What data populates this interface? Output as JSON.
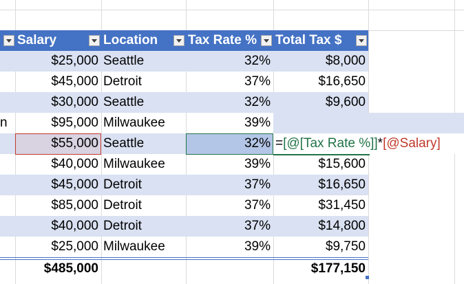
{
  "table": {
    "partial_col_text": "n",
    "headers": {
      "salary": "Salary",
      "location": "Location",
      "tax_rate": "Tax Rate %",
      "total_tax": "Total Tax $"
    },
    "rows": [
      {
        "salary": "$25,000",
        "location": "Seattle",
        "tax_rate": "32%",
        "total_tax": "$8,000"
      },
      {
        "salary": "$45,000",
        "location": "Detroit",
        "tax_rate": "37%",
        "total_tax": "$16,650"
      },
      {
        "salary": "$30,000",
        "location": "Seattle",
        "tax_rate": "32%",
        "total_tax": "$9,600"
      },
      {
        "salary": "$95,000",
        "location": "Milwaukee",
        "tax_rate": "39%",
        "total_tax": ""
      },
      {
        "salary": "$55,000",
        "location": "Seattle",
        "tax_rate": "32%",
        "total_tax": ""
      },
      {
        "salary": "$40,000",
        "location": "Milwaukee",
        "tax_rate": "39%",
        "total_tax": "$15,600"
      },
      {
        "salary": "$45,000",
        "location": "Detroit",
        "tax_rate": "37%",
        "total_tax": "$16,650"
      },
      {
        "salary": "$85,000",
        "location": "Detroit",
        "tax_rate": "37%",
        "total_tax": "$31,450"
      },
      {
        "salary": "$40,000",
        "location": "Detroit",
        "tax_rate": "37%",
        "total_tax": "$14,800"
      },
      {
        "salary": "$25,000",
        "location": "Milwaukee",
        "tax_rate": "39%",
        "total_tax": "$9,750"
      }
    ],
    "totals": {
      "salary": "$485,000",
      "total_tax": "$177,150"
    }
  },
  "formula": {
    "equals": "=",
    "ref1": "[@[Tax Rate %]]",
    "op": "*",
    "ref2": "[@Salary]"
  },
  "colors": {
    "header_bg": "#4472c4",
    "band": "#d9e1f2",
    "formula_green": "#217346",
    "formula_red": "#c0392b"
  }
}
